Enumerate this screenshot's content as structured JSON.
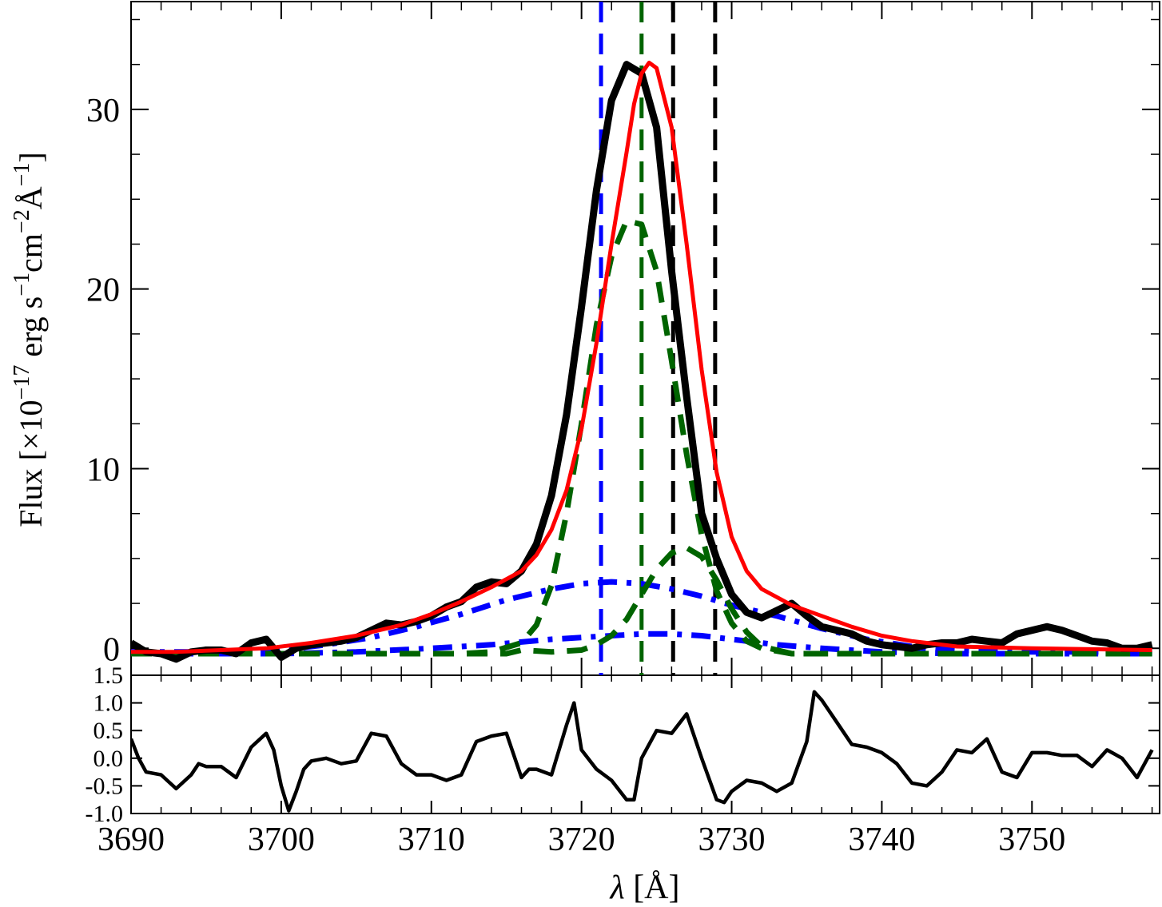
{
  "chart_data": [
    {
      "type": "line",
      "panel": "main",
      "ylabel": "Flux [×10⁻¹⁷ erg s⁻¹cm⁻²Å⁻¹]",
      "ylabel_parts": {
        "prefix": "Flux [×10",
        "exp1": "−17",
        "mid1": " erg s",
        "exp2": "−1",
        "mid2": "cm",
        "exp3": "−2",
        "mid3": "Å",
        "exp4": "−1",
        "suffix": "]"
      },
      "xlim": [
        3690,
        3758.5
      ],
      "ylim": [
        -1.5,
        36
      ],
      "yticks": [
        0,
        10,
        20,
        30
      ],
      "ytick_labels": [
        "0",
        "10",
        "20",
        "30"
      ],
      "yminor_step": 2.5,
      "xticks": [
        3690,
        3700,
        3710,
        3720,
        3730,
        3740,
        3750
      ],
      "xminor_step": 2,
      "vlines": [
        {
          "x": 3721.3,
          "color": "#0000ff",
          "style": "dashed"
        },
        {
          "x": 3724.0,
          "color": "#006400",
          "style": "dashed"
        },
        {
          "x": 3726.1,
          "color": "#000000",
          "style": "dashed"
        },
        {
          "x": 3728.9,
          "color": "#000000",
          "style": "dashed"
        }
      ],
      "series": [
        {
          "role": "observed",
          "color": "#000000",
          "style": "solid-thick",
          "x": [
            3690,
            3691,
            3692,
            3693,
            3694,
            3695,
            3696,
            3697,
            3698,
            3699,
            3700,
            3701,
            3702,
            3703,
            3704,
            3705,
            3706,
            3707,
            3708,
            3709,
            3710,
            3711,
            3712,
            3713,
            3714,
            3715,
            3716,
            3717,
            3718,
            3719,
            3720,
            3721,
            3722,
            3723,
            3724,
            3725,
            3726,
            3727,
            3728,
            3729,
            3730,
            3731,
            3732,
            3733,
            3734,
            3735,
            3736,
            3737,
            3738,
            3739,
            3740,
            3741,
            3742,
            3743,
            3744,
            3745,
            3746,
            3747,
            3748,
            3749,
            3750,
            3751,
            3752,
            3753,
            3754,
            3755,
            3756,
            3757,
            3758
          ],
          "y": [
            0.3,
            -0.2,
            -0.3,
            -0.6,
            -0.2,
            -0.1,
            -0.1,
            -0.3,
            0.3,
            0.5,
            -0.5,
            0.0,
            0.2,
            0.3,
            0.4,
            0.6,
            1.0,
            1.4,
            1.3,
            1.5,
            1.8,
            2.3,
            2.6,
            3.4,
            3.7,
            3.6,
            4.3,
            5.8,
            8.5,
            13.0,
            19.0,
            25.5,
            30.5,
            32.5,
            32.0,
            29.0,
            21.0,
            14.0,
            7.5,
            5.0,
            3.0,
            2.0,
            1.7,
            2.1,
            2.5,
            1.8,
            1.2,
            1.0,
            0.8,
            0.4,
            0.2,
            0.1,
            0.0,
            0.2,
            0.3,
            0.3,
            0.5,
            0.4,
            0.3,
            0.8,
            1.0,
            1.2,
            1.0,
            0.7,
            0.4,
            0.3,
            0.0,
            0.0,
            0.2
          ]
        },
        {
          "role": "model-total",
          "color": "#ff0000",
          "style": "solid",
          "x": [
            3690,
            3693,
            3696,
            3699,
            3702,
            3705,
            3708,
            3710,
            3712,
            3714,
            3716,
            3717,
            3718,
            3719,
            3720,
            3721,
            3722,
            3723,
            3723.5,
            3724,
            3724.5,
            3725,
            3726,
            3727,
            3728,
            3729,
            3730,
            3731,
            3732,
            3734,
            3736,
            3738,
            3740,
            3742,
            3745,
            3750,
            3758
          ],
          "y": [
            -0.2,
            -0.2,
            -0.1,
            0.0,
            0.3,
            0.7,
            1.3,
            1.9,
            2.6,
            3.4,
            4.3,
            5.2,
            6.6,
            8.8,
            12.2,
            17.0,
            22.5,
            27.6,
            30.3,
            32.0,
            32.6,
            32.3,
            29.0,
            22.5,
            15.5,
            9.8,
            6.2,
            4.3,
            3.3,
            2.4,
            1.8,
            1.2,
            0.7,
            0.4,
            0.1,
            0.0,
            -0.1
          ]
        },
        {
          "role": "component-narrow-main",
          "color": "#006400",
          "style": "dashed",
          "x": [
            3690,
            3712,
            3714,
            3716,
            3717,
            3718,
            3719,
            3720,
            3721,
            3722,
            3723,
            3724,
            3725,
            3726,
            3727,
            3728,
            3729,
            3730,
            3731,
            3732,
            3734,
            3736,
            3758
          ],
          "y": [
            -0.3,
            -0.3,
            -0.2,
            0.3,
            1.3,
            3.5,
            7.5,
            12.5,
            18.0,
            21.8,
            23.8,
            23.6,
            21.0,
            16.0,
            10.8,
            6.3,
            3.2,
            1.4,
            0.4,
            0.0,
            -0.3,
            -0.3,
            -0.3
          ]
        },
        {
          "role": "component-narrow-secondary",
          "color": "#006400",
          "style": "dashed",
          "x": [
            3690,
            3715,
            3716,
            3718,
            3720,
            3721,
            3722,
            3723,
            3724,
            3725,
            3726,
            3727,
            3728,
            3729,
            3730,
            3731,
            3732,
            3734,
            3758
          ],
          "y": [
            -0.3,
            -0.3,
            -0.1,
            -0.2,
            -0.1,
            0.2,
            0.7,
            1.6,
            3.0,
            4.4,
            5.3,
            5.6,
            5.1,
            3.8,
            2.2,
            0.9,
            0.1,
            -0.3,
            -0.3
          ]
        },
        {
          "role": "component-broad-main",
          "color": "#0000ff",
          "style": "dashdot",
          "x": [
            3690,
            3695,
            3700,
            3703,
            3706,
            3709,
            3712,
            3715,
            3718,
            3720,
            3722,
            3724,
            3726,
            3728,
            3730,
            3733,
            3736,
            3739,
            3742,
            3745,
            3750,
            3758
          ],
          "y": [
            -0.2,
            -0.2,
            -0.1,
            0.2,
            0.6,
            1.2,
            1.9,
            2.7,
            3.3,
            3.6,
            3.7,
            3.6,
            3.3,
            2.9,
            2.4,
            1.8,
            1.1,
            0.5,
            0.1,
            -0.1,
            -0.2,
            -0.2
          ]
        },
        {
          "role": "component-broad-secondary",
          "color": "#0000ff",
          "style": "dashdot",
          "x": [
            3690,
            3700,
            3705,
            3710,
            3714,
            3718,
            3722,
            3724,
            3726,
            3728,
            3730,
            3733,
            3736,
            3740,
            3745,
            3758
          ],
          "y": [
            -0.3,
            -0.3,
            -0.2,
            0.0,
            0.2,
            0.5,
            0.7,
            0.8,
            0.8,
            0.7,
            0.5,
            0.2,
            0.0,
            -0.2,
            -0.3,
            -0.3
          ]
        }
      ]
    },
    {
      "type": "line",
      "panel": "residual",
      "xlabel": "λ [Å]",
      "xlabel_parts": {
        "lambda": "λ",
        "unit": " [Å]"
      },
      "xlim": [
        3690,
        3758.5
      ],
      "ylim": [
        -1.0,
        1.5
      ],
      "yticks": [
        1.5,
        1.0,
        0.5,
        0.0,
        -0.5,
        -1.0
      ],
      "ytick_labels": [
        "1.5",
        "1.0",
        "0.5",
        "0.0",
        "-0.5",
        "-1.0"
      ],
      "xticks": [
        3690,
        3700,
        3710,
        3720,
        3730,
        3740,
        3750
      ],
      "xtick_labels": [
        "3690",
        "3700",
        "3710",
        "3720",
        "3730",
        "3740",
        "3750"
      ],
      "series": [
        {
          "role": "residual",
          "color": "#000000",
          "style": "solid",
          "x": [
            3690,
            3690.5,
            3691,
            3692,
            3693,
            3694,
            3694.5,
            3695,
            3696,
            3697,
            3698,
            3699,
            3699.5,
            3700,
            3700.5,
            3701,
            3701.5,
            3702,
            3703,
            3704,
            3705,
            3706,
            3707,
            3708,
            3709,
            3710,
            3711,
            3712,
            3713,
            3714,
            3715,
            3716,
            3716.5,
            3717,
            3718,
            3719,
            3719.5,
            3720,
            3721,
            3722,
            3723,
            3723.5,
            3724,
            3725,
            3726,
            3727,
            3728,
            3729,
            3729.5,
            3730,
            3731,
            3732,
            3733,
            3734,
            3735,
            3735.5,
            3736,
            3737,
            3738,
            3739,
            3740,
            3741,
            3742,
            3743,
            3744,
            3745,
            3746,
            3747,
            3748,
            3749,
            3750,
            3751,
            3752,
            3753,
            3754,
            3755,
            3756,
            3757,
            3758
          ],
          "y": [
            0.35,
            0.0,
            -0.25,
            -0.3,
            -0.55,
            -0.3,
            -0.1,
            -0.15,
            -0.15,
            -0.35,
            0.2,
            0.45,
            0.15,
            -0.5,
            -0.95,
            -0.6,
            -0.2,
            -0.05,
            0.0,
            -0.1,
            -0.05,
            0.45,
            0.4,
            -0.1,
            -0.3,
            -0.3,
            -0.4,
            -0.3,
            0.3,
            0.4,
            0.45,
            -0.35,
            -0.2,
            -0.2,
            -0.3,
            0.6,
            1.0,
            0.15,
            -0.2,
            -0.4,
            -0.75,
            -0.75,
            0.0,
            0.5,
            0.45,
            0.8,
            0.0,
            -0.75,
            -0.8,
            -0.6,
            -0.4,
            -0.45,
            -0.6,
            -0.45,
            0.3,
            1.2,
            1.05,
            0.65,
            0.25,
            0.2,
            0.1,
            -0.1,
            -0.45,
            -0.5,
            -0.25,
            0.15,
            0.1,
            0.35,
            -0.25,
            -0.35,
            0.1,
            0.1,
            0.05,
            0.05,
            -0.15,
            0.15,
            0.0,
            -0.35,
            0.15
          ]
        }
      ]
    }
  ]
}
